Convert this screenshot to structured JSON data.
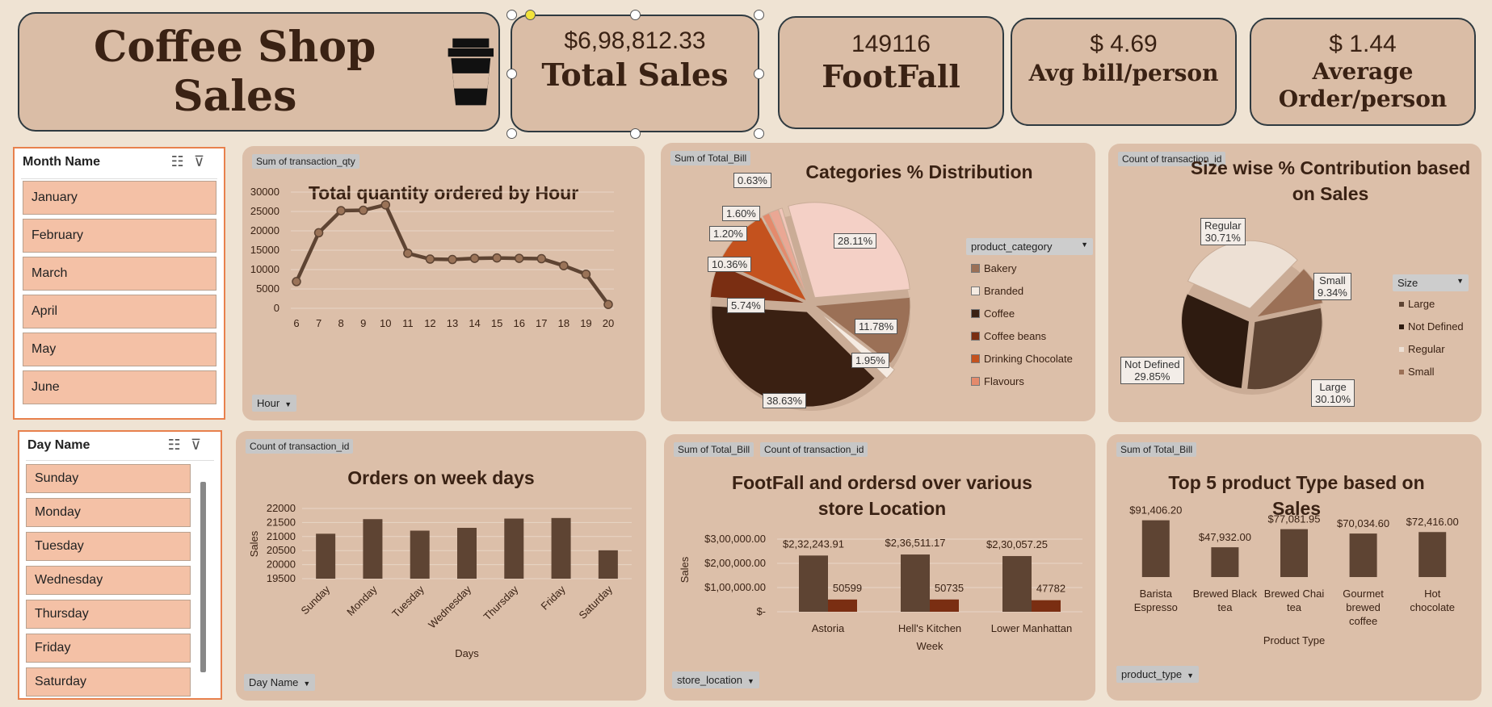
{
  "header": {
    "title": "Coffee Shop Sales",
    "icon": "coffee-cup-icon"
  },
  "kpis": [
    {
      "value": "$6,98,812.33",
      "label": "Total Sales"
    },
    {
      "value": "149116",
      "label": "FootFall"
    },
    {
      "value": "$ 4.69",
      "label": "Avg bill/person"
    },
    {
      "value": "$ 1.44",
      "label_line1": "Average",
      "label_line2": "Order/person"
    }
  ],
  "month_slicer": {
    "title": "Month Name",
    "items": [
      "January",
      "February",
      "March",
      "April",
      "May",
      "June"
    ]
  },
  "day_slicer": {
    "title": "Day Name",
    "items": [
      "Sunday",
      "Monday",
      "Tuesday",
      "Wednesday",
      "Thursday",
      "Friday",
      "Saturday"
    ]
  },
  "charts": {
    "hourly": {
      "field_chip": "Sum of transaction_qty",
      "title": "Total quantity ordered by Hour",
      "filter": "Hour"
    },
    "categories": {
      "field_chip": "Sum of Total_Bill",
      "title": "Categories % Distribution",
      "legend_header": "product_category"
    },
    "sizes": {
      "field_chip": "Count of transaction_id",
      "title_line1": "Size wise % Contribution based",
      "title_line2": "on Sales",
      "legend_header": "Size"
    },
    "weekdays": {
      "field_chip": "Count of transaction_id",
      "title": "Orders on week days",
      "filter": "Day Name"
    },
    "locations": {
      "field_chip_1": "Sum of Total_Bill",
      "field_chip_2": "Count of transaction_id",
      "title_line1": "FootFall and ordersd over various",
      "title_line2": "store Location",
      "filter": "store_location"
    },
    "top_products": {
      "field_chip": "Sum of Total_Bill",
      "title_line1": "Top 5 product Type based on",
      "title_line2": "Sales",
      "filter": "product_type"
    }
  },
  "chart_data": [
    {
      "type": "line",
      "title": "Total quantity ordered by Hour",
      "xlabel": "",
      "ylabel": "",
      "x": [
        6,
        7,
        8,
        9,
        10,
        11,
        12,
        13,
        14,
        15,
        16,
        17,
        18,
        19,
        20
      ],
      "values": [
        6900,
        19500,
        25200,
        25300,
        26700,
        14200,
        12700,
        12600,
        12900,
        13000,
        12900,
        12800,
        11000,
        8800,
        1000
      ],
      "ylim": [
        0,
        30000
      ],
      "yticks": [
        "0",
        "5000",
        "10000",
        "15000",
        "20000",
        "25000",
        "30000"
      ],
      "grid": true,
      "color": "#5e4433"
    },
    {
      "type": "pie",
      "title": "Categories % Distribution",
      "slices": [
        {
          "label": "Bakery",
          "value": 11.78,
          "display": "11.78%",
          "color": "#9b7056"
        },
        {
          "label": "Branded",
          "value": 1.95,
          "display": "1.95%",
          "color": "#f5ebe2"
        },
        {
          "label": "Coffee",
          "value": 38.63,
          "display": "38.63%",
          "color": "#3a2012"
        },
        {
          "label": "Coffee beans",
          "value": 5.74,
          "display": "5.74%",
          "color": "#7a2e12"
        },
        {
          "label": "Drinking Chocolate",
          "value": 10.36,
          "display": "10.36%",
          "color": "#c4521e"
        },
        {
          "label": "Flavours",
          "value": 1.2,
          "display": "1.20%",
          "color": "#e48a6c"
        },
        {
          "label": "",
          "value": 1.6,
          "display": "1.60%",
          "color": "#eaa794"
        },
        {
          "label": "",
          "value": 0.63,
          "display": "0.63%",
          "color": "#f1c6b9"
        },
        {
          "label": "",
          "value": 28.11,
          "display": "28.11%",
          "color": "#f4d0c6"
        }
      ],
      "legend_placement": "right"
    },
    {
      "type": "pie",
      "title": "Size wise % Contribution based on Sales",
      "slices": [
        {
          "label": "Large",
          "value": 30.1,
          "display": "30.10%",
          "color": "#5e4433"
        },
        {
          "label": "Not Defined",
          "value": 29.85,
          "display": "29.85%",
          "color": "#2e1b10"
        },
        {
          "label": "Regular",
          "value": 30.71,
          "display": "30.71%",
          "color": "#ede0d4"
        },
        {
          "label": "Small",
          "value": 9.34,
          "display": "9.34%",
          "color": "#9b7056"
        }
      ],
      "legend_placement": "right"
    },
    {
      "type": "bar",
      "title": "Orders on week days",
      "xlabel": "Days",
      "ylabel": "Sales",
      "categories": [
        "Sunday",
        "Monday",
        "Tuesday",
        "Wednesday",
        "Thursday",
        "Friday",
        "Saturday"
      ],
      "values": [
        21100,
        21620,
        21210,
        21310,
        21640,
        21660,
        20510
      ],
      "ylim": [
        19500,
        22000
      ],
      "yticks": [
        "19500",
        "20000",
        "20500",
        "21000",
        "21500",
        "22000"
      ],
      "grid": true,
      "color": "#5e4433"
    },
    {
      "type": "bar",
      "title": "FootFall and ordersd over various store Location",
      "xlabel": "Week",
      "ylabel": "Sales",
      "categories": [
        "Astoria",
        "Hell's Kitchen",
        "Lower Manhattan"
      ],
      "series": [
        {
          "name": "Sum of Total_Bill",
          "values": [
            232243.91,
            236511.17,
            230057.25
          ],
          "labels": [
            "$2,32,243.91",
            "$2,36,511.17",
            "$2,30,057.25"
          ],
          "color": "#5e4433"
        },
        {
          "name": "Count of transaction_id",
          "values": [
            50599,
            50735,
            47782
          ],
          "labels": [
            "50599",
            "50735",
            "47782"
          ],
          "color": "#7a2e12"
        }
      ],
      "ylim": [
        0,
        300000
      ],
      "yticks": [
        "$-",
        "$1,00,000.00",
        "$2,00,000.00",
        "$3,00,000.00"
      ],
      "grid": true
    },
    {
      "type": "bar",
      "title": "Top 5 product Type based on Sales",
      "xlabel": "Product Type",
      "ylabel": "",
      "categories": [
        "Barista Espresso",
        "Brewed Black tea",
        "Brewed Chai tea",
        "Gourmet brewed coffee",
        "Hot chocolate"
      ],
      "values": [
        91406.2,
        47932.0,
        77081.95,
        70034.6,
        72416.0
      ],
      "labels": [
        "$91,406.20",
        "$47,932.00",
        "$77,081.95",
        "$70,034.60",
        "$72,416.00"
      ],
      "ylim": [
        0,
        100000
      ],
      "color": "#5e4433"
    }
  ]
}
